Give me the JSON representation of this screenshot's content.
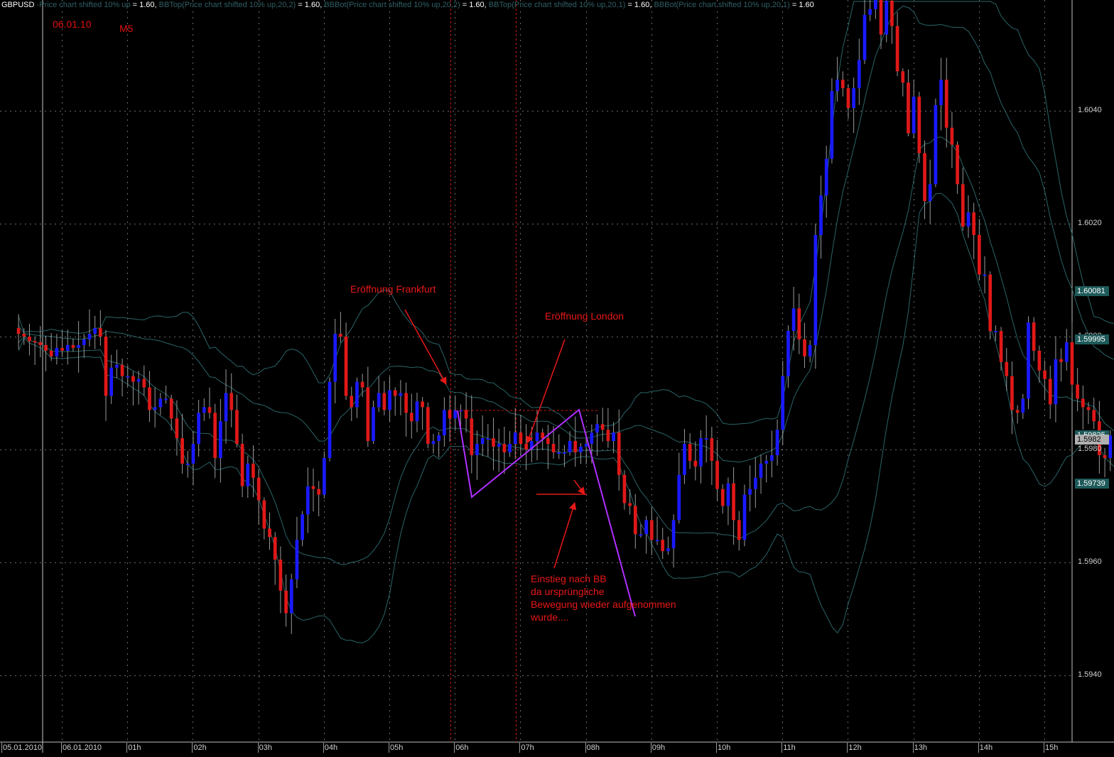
{
  "window": {
    "symbol": "GBPUSD",
    "indicator_legend": [
      {
        "name": " -Price chart shifted 10% up",
        "value": " = 1.60, "
      },
      {
        "name": "BBTop(Price chart shifted 10% up,20,2)",
        "value": " = 1.60, "
      },
      {
        "name": "BBBot(Price chart shifted 10% up,20,2)",
        "value": " = 1.60, "
      },
      {
        "name": "BBTop(Price chart shifted 10% up,20,1)",
        "value": " = 1.60, "
      },
      {
        "name": "BBBot(Price chart shifted 10% up,20,1)",
        "value": " = 1.60"
      }
    ],
    "date_label": "06.01.10",
    "timeframe": "M5"
  },
  "annotations": {
    "frankfurt": "Eröffnung Frankfurt",
    "london": "Eröffnung London",
    "entry_lines": [
      "Einstieg nach BB",
      "da ursprüngliche",
      "Bewegung wieder aufgenommen",
      "wurde...."
    ]
  },
  "price_badges": [
    {
      "label": "1.60081",
      "price": 1.60081,
      "style": "band"
    },
    {
      "label": "1.59995",
      "price": 1.59995,
      "style": "band"
    },
    {
      "label": "1.59825",
      "price": 1.59825,
      "style": "band"
    },
    {
      "label": "1.5982",
      "price": 1.59818,
      "style": "last"
    },
    {
      "label": "1.59739",
      "price": 1.59739,
      "style": "band"
    }
  ],
  "colors": {
    "background": "#000000",
    "bull_candle": "#1a1aff",
    "bear_candle": "#e01818",
    "wick": "#9a9a9a",
    "band": "#2a6468",
    "grid": "#6a6a6a",
    "annotation": "#e81818",
    "trend": "#b030ff",
    "badge_band": "#1e5a5a",
    "badge_last": "#b0b0b0"
  },
  "chart_data": {
    "type": "candlestick",
    "symbol": "GBPUSD",
    "timeframe": "M5",
    "y_ticks": [
      "1.5940",
      "1.5960",
      "1.5980",
      "1.6000",
      "1.6020",
      "1.6040"
    ],
    "y_tick_values": [
      1.594,
      1.596,
      1.598,
      1.6,
      1.602,
      1.604
    ],
    "ylim": [
      1.5918,
      1.6059
    ],
    "x_ticks": [
      "05.01.2010",
      "06.01.2010",
      "01h",
      "02h",
      "03h",
      "04h",
      "05h",
      "06h",
      "07h",
      "08h",
      "09h",
      "10h",
      "11h",
      "12h",
      "13h",
      "14h",
      "15h"
    ],
    "hours": [
      0,
      1,
      2,
      3,
      4,
      5,
      6,
      7,
      8,
      9,
      10,
      11,
      12,
      13,
      14,
      15
    ],
    "bars_per_hour": 12,
    "first_bar_hour": -0.8,
    "grid": true,
    "event_lines_hours": [
      5.83,
      6.83
    ],
    "closes": [
      1.60005,
      1.6,
      1.59992,
      1.5999,
      1.59985,
      1.59975,
      1.59965,
      1.5998,
      1.59975,
      1.59985,
      1.5998,
      1.59985,
      1.59995,
      1.60005,
      1.60015,
      1.6,
      1.59895,
      1.59945,
      1.5995,
      1.5993,
      1.5993,
      1.5992,
      1.59925,
      1.5991,
      1.5987,
      1.59875,
      1.5989,
      1.5989,
      1.59855,
      1.5982,
      1.59775,
      1.59775,
      1.5981,
      1.59865,
      1.59875,
      1.59865,
      1.59785,
      1.5985,
      1.599,
      1.5987,
      1.5981,
      1.59735,
      1.59775,
      1.5975,
      1.5971,
      1.5966,
      1.59645,
      1.59605,
      1.5955,
      1.5951,
      1.5957,
      1.5964,
      1.59685,
      1.59735,
      1.5973,
      1.5972,
      1.59785,
      1.5992,
      1.60005,
      1.6,
      1.59895,
      1.59875,
      1.5992,
      1.5991,
      1.59815,
      1.59875,
      1.599,
      1.5987,
      1.59905,
      1.59895,
      1.599,
      1.59865,
      1.5985,
      1.59885,
      1.59875,
      1.5981,
      1.59815,
      1.59825,
      1.5987,
      1.59855,
      1.5987,
      1.5987,
      1.59855,
      1.5979,
      1.5981,
      1.5982,
      1.5982,
      1.59805,
      1.5981,
      1.59795,
      1.5981,
      1.5983,
      1.5981,
      1.598,
      1.59815,
      1.5983,
      1.5982,
      1.5981,
      1.59795,
      1.59795,
      1.59795,
      1.59815,
      1.59795,
      1.59805,
      1.5981,
      1.5983,
      1.59845,
      1.59835,
      1.59815,
      1.5983,
      1.59755,
      1.59705,
      1.597,
      1.5965,
      1.5965,
      1.59675,
      1.5964,
      1.5964,
      1.5962,
      1.59625,
      1.59675,
      1.59755,
      1.5981,
      1.5978,
      1.5977,
      1.5982,
      1.5982,
      1.5978,
      1.5973,
      1.597,
      1.5974,
      1.59675,
      1.5964,
      1.5972,
      1.5973,
      1.5975,
      1.59775,
      1.5978,
      1.5979,
      1.59835,
      1.5993,
      1.6001,
      1.6005,
      1.59995,
      1.59965,
      1.59985,
      1.6018,
      1.6025,
      1.60315,
      1.60435,
      1.60455,
      1.6044,
      1.60405,
      1.6044,
      1.6049,
      1.6057,
      1.6058,
      1.606,
      1.60535,
      1.60595,
      1.6055,
      1.6047,
      1.6045,
      1.6036,
      1.60425,
      1.60325,
      1.6024,
      1.6027,
      1.6041,
      1.60455,
      1.6037,
      1.6034,
      1.6027,
      1.60195,
      1.6022,
      1.6018,
      1.6011,
      1.6011,
      1.6001,
      1.6001,
      1.59955,
      1.5993,
      1.5987,
      1.59865,
      1.5989,
      1.60025,
      1.59975,
      1.5994,
      1.59925,
      1.5988,
      1.5996,
      1.59955,
      1.5999,
      1.59915,
      1.5989,
      1.59875,
      1.5987,
      1.5985,
      1.5979,
      1.59785,
      1.59825,
      1.5982,
      1.598
    ],
    "series": [
      {
        "name": "BBTop(Price chart shifted 10% up,20,2)"
      },
      {
        "name": "BBBot(Price chart shifted 10% up,20,2)"
      },
      {
        "name": "BBTop(Price chart shifted 10% up,20,1)"
      },
      {
        "name": "BBBot(Price chart shifted 10% up,20,1)"
      }
    ]
  }
}
